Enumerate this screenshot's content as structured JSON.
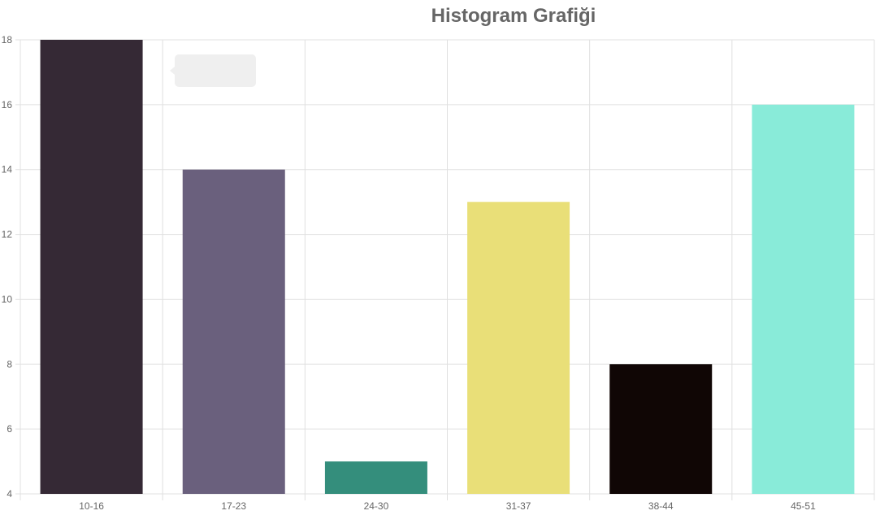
{
  "chart_data": {
    "type": "bar",
    "title": "Histogram Grafiği",
    "categories": [
      "10-16",
      "17-23",
      "24-30",
      "31-37",
      "38-44",
      "45-51"
    ],
    "values": [
      18,
      14,
      5,
      13,
      8,
      16
    ],
    "colors": [
      "#352935",
      "#6a607d",
      "#348e7c",
      "#e9df78",
      "#100605",
      "#89ebd9"
    ],
    "ylim": [
      4,
      18
    ],
    "yticks": [
      4,
      6,
      8,
      10,
      12,
      14,
      16,
      18
    ],
    "grid": true,
    "xlabel": "",
    "ylabel": ""
  }
}
